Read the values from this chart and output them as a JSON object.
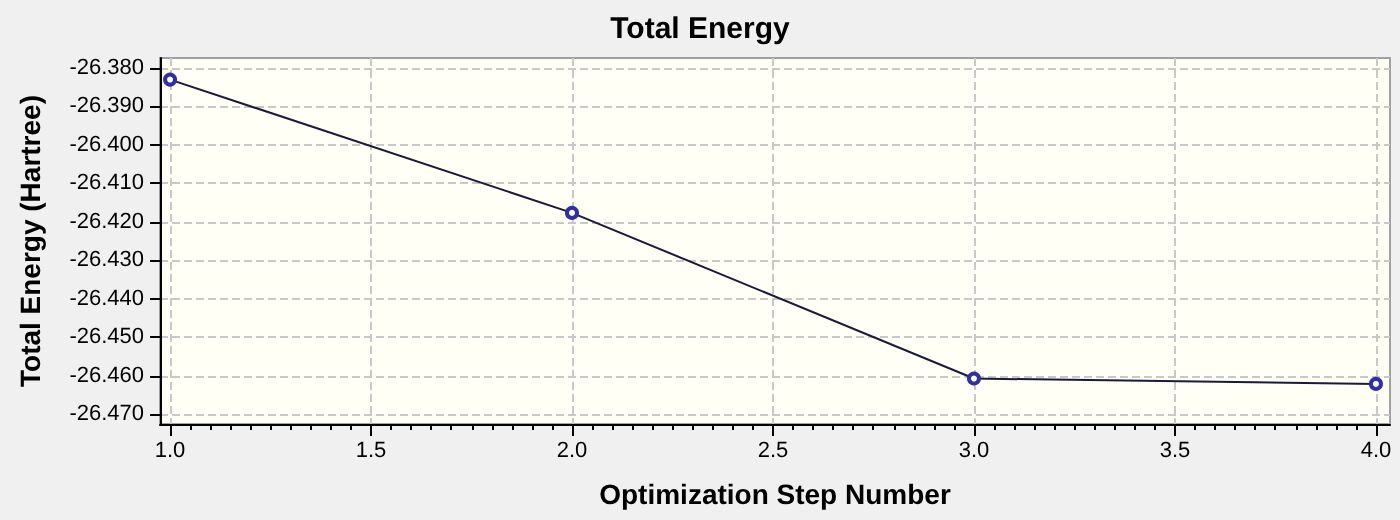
{
  "chart_data": {
    "type": "line",
    "title": "Total Energy",
    "xlabel": "Optimization Step Number",
    "ylabel": "Total Energy (Hartree)",
    "x": [
      1,
      2,
      3,
      4
    ],
    "series": [
      {
        "color": "#1a1a3a",
        "values": [
          -26.3831,
          -26.4177,
          -26.4607,
          -26.4621
        ]
      }
    ],
    "xlim": [
      0.975,
      4.035
    ],
    "xticks": [
      {
        "value": 1,
        "label": "1.0"
      },
      1.5,
      {
        "value": 2,
        "label": "2.0"
      },
      2.5,
      {
        "value": 3,
        "label": "3.0"
      },
      3.5,
      {
        "value": 4,
        "label": "4.0"
      }
    ],
    "ylim": [
      -26.4725,
      -26.3775
    ],
    "yticks": [
      {
        "value": -26.38,
        "label": "-26.380"
      },
      {
        "value": -26.39,
        "label": "-26.390"
      },
      {
        "value": -26.4,
        "label": "-26.400"
      },
      {
        "value": -26.41,
        "label": "-26.410"
      },
      {
        "value": -26.42,
        "label": "-26.420"
      },
      {
        "value": -26.43,
        "label": "-26.430"
      },
      {
        "value": -26.44,
        "label": "-26.440"
      },
      {
        "value": -26.45,
        "label": "-26.450"
      },
      {
        "value": -26.46,
        "label": "-26.460"
      },
      {
        "value": -26.47,
        "label": "-26.470"
      }
    ],
    "grid": true,
    "marker": "circle",
    "line_style": "solid"
  }
}
